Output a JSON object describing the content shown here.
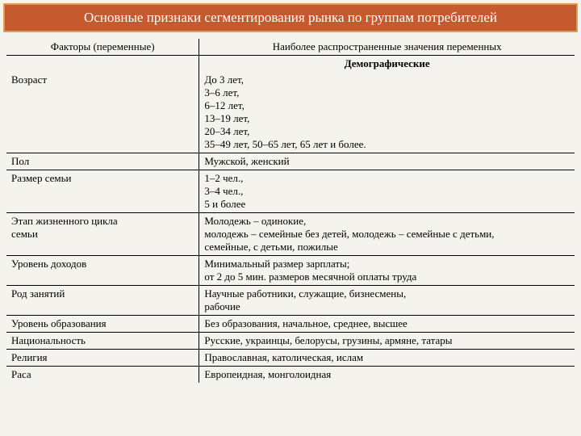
{
  "title": "Основные признаки сегментирования рынка по группам потребителей",
  "headers": {
    "left": "Факторы (переменные)",
    "right": "Наиболее распространенные значения переменных"
  },
  "section": "Демографические",
  "rows": [
    {
      "factor": "Возраст",
      "values": [
        "До 3 лет,",
        "3–6 лет,",
        "6–12 лет,",
        "13–19 лет,",
        "20–34 лет,",
        "35–49 лет, 50–65 лет, 65 лет и более."
      ]
    },
    {
      "factor": "Пол",
      "values": [
        "Мужской, женский"
      ]
    },
    {
      "factor": "Размер семьи",
      "values": [
        "1–2 чел.,",
        " 3–4 чел.,",
        "5 и более"
      ]
    },
    {
      "factor_lines": [
        "Этап жизненного цикла",
        "семьи"
      ],
      "values": [
        "Молодежь – одинокие,",
        "молодежь – семейные без детей, молодежь – семейные с детьми,",
        "семейные, с детьми, пожилые"
      ]
    },
    {
      "factor": "Уровень доходов",
      "values": [
        "Минимальный размер зарплаты;",
        "от 2 до 5 мин. размеров месячной оплаты труда"
      ]
    },
    {
      "factor": "Род занятий",
      "values": [
        "Научные работники, служащие, бизнесмены,",
        "рабочие"
      ]
    },
    {
      "factor": "Уровень образования",
      "values": [
        "Без образования, начальное, среднее, высшее"
      ]
    },
    {
      "factor": "Национальность",
      "values": [
        "Русские, украинцы, белорусы, грузины, армяне, татары"
      ]
    },
    {
      "factor": "Религия",
      "values": [
        "Православная, католическая, ислам"
      ]
    },
    {
      "factor": "Раса",
      "values": [
        "Европеидная, монголоидная"
      ]
    }
  ],
  "colors": {
    "header_bg": "#c55a2e",
    "header_border": "#d4a15a",
    "header_text": "#ffffff",
    "page_bg": "#f5f3ee",
    "text": "#000000",
    "border": "#000000"
  },
  "layout": {
    "left_col_pct": 34,
    "right_col_pct": 66,
    "base_fontsize": 13,
    "title_fontsize": 17
  }
}
